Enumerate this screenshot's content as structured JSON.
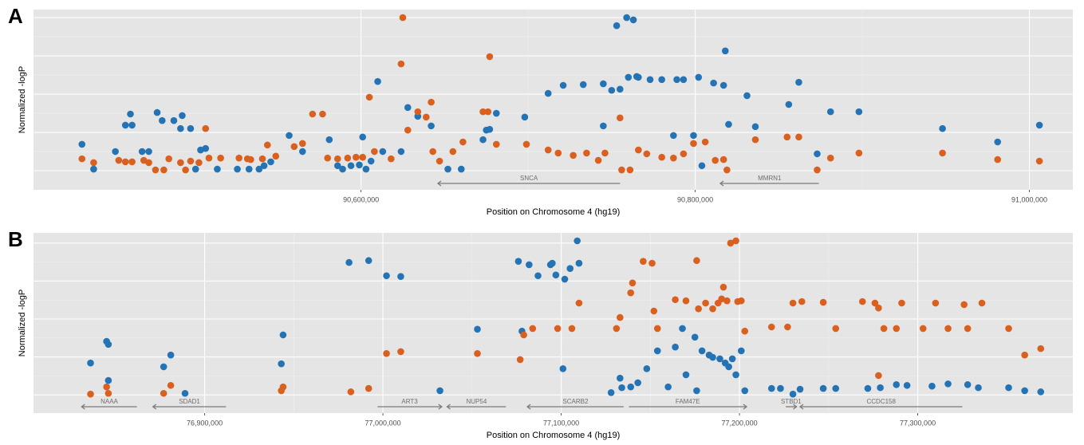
{
  "chart_data": [
    {
      "type": "scatter",
      "panel_label": "A",
      "xlabel": "Position on Chromosome 4 (hg19)",
      "ylabel": "Normalized -logP",
      "xlim": [
        90404000,
        91026000
      ],
      "ylim": [
        0.5,
        5.21
      ],
      "xticks": [
        {
          "value": 90600000,
          "label": "90,600,000"
        },
        {
          "value": 90800000,
          "label": "90,800,000"
        },
        {
          "value": 91000000,
          "label": "91,000,000"
        }
      ],
      "yticks": [
        1,
        2,
        3,
        4,
        5
      ],
      "grid": true,
      "genes": [
        {
          "name": "SNCA",
          "start": 90646000,
          "end": 90755000,
          "arrow": "left"
        },
        {
          "name": "MMRN1",
          "start": 90815000,
          "end": 90874000,
          "arrow": "left"
        }
      ],
      "series": [
        {
          "color": "#2474b5",
          "x": [
            90433000,
            90440000,
            90453000,
            90459000,
            90462000,
            90463000,
            90469000,
            90473000,
            90478000,
            90481000,
            90488000,
            90492000,
            90493000,
            90498000,
            90501000,
            90504000,
            90507000,
            90514000,
            90526000,
            90533000,
            90539000,
            90542000,
            90546000,
            90557000,
            90565000,
            90581000,
            90586000,
            90589000,
            90594000,
            90599000,
            90601000,
            90603000,
            90606000,
            90610000,
            90613000,
            90624000,
            90628000,
            90634000,
            90642000,
            90652000,
            90660000,
            90673000,
            90675000,
            90677000,
            90681000,
            90698000,
            90712000,
            90721000,
            90733000,
            90745000,
            90745000,
            90750000,
            90753000,
            90755000,
            90759000,
            90760000,
            90763000,
            90765000,
            90766000,
            90773000,
            90780000,
            90787000,
            90789000,
            90793000,
            90799000,
            90802000,
            90804000,
            90811000,
            90817000,
            90818000,
            90820000,
            90831000,
            90836000,
            90856000,
            90862000,
            90873000,
            90881000,
            90898000,
            90948000,
            90981000,
            91006000
          ],
          "values": [
            1.69,
            1.04,
            1.5,
            2.19,
            2.48,
            2.19,
            1.5,
            1.5,
            2.52,
            2.31,
            2.31,
            2.1,
            2.44,
            2.1,
            1.04,
            1.54,
            1.58,
            1.04,
            1.04,
            1.04,
            1.04,
            1.13,
            1.23,
            1.92,
            1.5,
            1.81,
            1.13,
            1.04,
            1.13,
            1.15,
            1.88,
            1.04,
            1.25,
            3.33,
            1.5,
            1.5,
            2.65,
            2.42,
            2.17,
            1.04,
            1.04,
            1.81,
            2.06,
            2.08,
            2.5,
            2.4,
            3.02,
            3.23,
            3.25,
            3.27,
            2.17,
            3.1,
            4.79,
            3.13,
            5,
            3.44,
            4.94,
            3.46,
            3.44,
            3.38,
            3.38,
            1.92,
            3.38,
            3.38,
            1.92,
            3.44,
            1.13,
            3.29,
            3.23,
            4.13,
            2.21,
            2.96,
            2.15,
            2.73,
            3.31,
            1.44,
            2.54,
            2.54,
            2.1,
            1.75,
            2.19
          ]
        },
        {
          "color": "#d9601f",
          "x": [
            90433000,
            90440000,
            90455000,
            90459000,
            90463000,
            90470000,
            90473000,
            90477000,
            90482000,
            90485000,
            90492000,
            90495000,
            90498000,
            90503000,
            90507000,
            90509000,
            90516000,
            90527000,
            90532000,
            90534000,
            90541000,
            90544000,
            90549000,
            90560000,
            90565000,
            90571000,
            90577000,
            90580000,
            90586000,
            90592000,
            90597000,
            90601000,
            90605000,
            90608000,
            90618000,
            90624000,
            90625000,
            90628000,
            90634000,
            90639000,
            90642000,
            90643000,
            90647000,
            90655000,
            90661000,
            90673000,
            90676000,
            90677000,
            90681000,
            90699000,
            90712000,
            90718000,
            90727000,
            90735000,
            90742000,
            90746000,
            90755000,
            90756000,
            90761000,
            90766000,
            90771000,
            90780000,
            90787000,
            90793000,
            90799000,
            90806000,
            90812000,
            90817000,
            90819000,
            90836000,
            90855000,
            90862000,
            90873000,
            90881000,
            90898000,
            90948000,
            90981000,
            91006000
          ],
          "values": [
            1.31,
            1.21,
            1.27,
            1.23,
            1.23,
            1.27,
            1.21,
            1.02,
            1.02,
            1.31,
            1.21,
            1.02,
            1.25,
            1.21,
            2.1,
            1.33,
            1.33,
            1.33,
            1.31,
            1.29,
            1.31,
            1.67,
            1.38,
            1.63,
            1.71,
            2.48,
            2.48,
            1.33,
            1.31,
            1.33,
            1.35,
            1.35,
            2.92,
            1.5,
            1.31,
            3.79,
            5,
            2.06,
            2.54,
            2.4,
            2.79,
            1.5,
            1.25,
            1.5,
            1.75,
            2.54,
            2.54,
            3.98,
            1.69,
            1.69,
            1.54,
            1.46,
            1.4,
            1.46,
            1.27,
            1.46,
            2.38,
            1.02,
            1.02,
            1.54,
            1.44,
            1.35,
            1.33,
            1.44,
            1.71,
            1.75,
            1.27,
            1.29,
            1.02,
            1.81,
            1.88,
            1.88,
            1.02,
            1.33,
            1.46,
            1.46,
            1.29,
            1.25
          ]
        }
      ]
    },
    {
      "type": "scatter",
      "panel_label": "B",
      "xlabel": "Position on Chromosome 4 (hg19)",
      "ylabel": "Normalized -logP",
      "xlim": [
        76804000,
        77387000
      ],
      "ylim": [
        0.52,
        5.27
      ],
      "xticks": [
        {
          "value": 76900000,
          "label": "76,900,000"
        },
        {
          "value": 77000000,
          "label": "77,000,000"
        },
        {
          "value": 77100000,
          "label": "77,100,000"
        },
        {
          "value": 77200000,
          "label": "77,200,000"
        },
        {
          "value": 77300000,
          "label": "77,300,000"
        }
      ],
      "yticks": [
        1,
        2,
        3,
        4,
        5
      ],
      "grid": true,
      "genes": [
        {
          "name": "NAAA",
          "start": 76831000,
          "end": 76862000,
          "arrow": "left"
        },
        {
          "name": "SDAD1",
          "start": 76871000,
          "end": 76912000,
          "arrow": "left"
        },
        {
          "name": "ART3",
          "start": 76997000,
          "end": 77033000,
          "arrow": "right"
        },
        {
          "name": "NUP54",
          "start": 77036000,
          "end": 77069000,
          "arrow": "left"
        },
        {
          "name": "SCARB2",
          "start": 77081000,
          "end": 77135000,
          "arrow": "left"
        },
        {
          "name": "FAM47E",
          "start": 77138000,
          "end": 77204000,
          "arrow": "right"
        },
        {
          "name": "STBD1",
          "start": 77226000,
          "end": 77232000,
          "arrow": "right"
        },
        {
          "name": "CCDC158",
          "start": 77234000,
          "end": 77325000,
          "arrow": "left"
        }
      ],
      "series": [
        {
          "color": "#2474b5",
          "x": [
            76836000,
            76846000,
            76845000,
            76846000,
            76877000,
            76881000,
            76889000,
            76944000,
            76943000,
            76981000,
            76992000,
            77002000,
            77010000,
            77032000,
            77053000,
            77076000,
            77078000,
            77082000,
            77087000,
            77094000,
            77095000,
            77097000,
            77101000,
            77102000,
            77105000,
            77109000,
            77110000,
            77128000,
            77133000,
            77134000,
            77139000,
            77143000,
            77148000,
            77154000,
            77160000,
            77164000,
            77168000,
            77170000,
            77175000,
            77176000,
            77179000,
            77183000,
            77185000,
            77189000,
            77192000,
            77194000,
            77196000,
            77198000,
            77201000,
            77203000,
            77218000,
            77223000,
            77230000,
            77234000,
            77247000,
            77254000,
            77272000,
            77279000,
            77288000,
            77294000,
            77308000,
            77317000,
            77328000,
            77334000,
            77351000,
            77360000,
            77369000
          ],
          "values": [
            1.84,
            1.38,
            2.41,
            2.33,
            1.74,
            2.05,
            1.04,
            2.58,
            1.82,
            4.49,
            4.54,
            4.14,
            4.12,
            1.11,
            2.73,
            4.52,
            2.68,
            4.43,
            4.14,
            4.43,
            4.47,
            4.16,
            1.69,
            4.05,
            4.33,
            5.06,
            4.47,
            1.06,
            1.44,
            1.19,
            1.21,
            1.32,
            1.69,
            2.16,
            1.21,
            2.26,
            2.75,
            1.53,
            2.52,
            1.11,
            2.16,
            2.05,
            1.99,
            1.95,
            1.84,
            1.74,
            1.95,
            1.53,
            2.16,
            1.11,
            1.17,
            1.17,
            1.02,
            1.15,
            1.17,
            1.17,
            1.17,
            1.19,
            1.27,
            1.25,
            1.23,
            1.29,
            1.27,
            1.19,
            1.19,
            1.11,
            1.08
          ]
        },
        {
          "color": "#d9601f",
          "x": [
            76836000,
            76845000,
            76846000,
            76881000,
            76877000,
            76944000,
            76943000,
            76982000,
            76992000,
            77002000,
            77010000,
            77053000,
            77077000,
            77079000,
            77084000,
            77098000,
            77106000,
            77110000,
            77131000,
            77133000,
            77139000,
            77140000,
            77146000,
            77151000,
            77152000,
            77154000,
            77164000,
            77170000,
            77176000,
            77177000,
            77181000,
            77185000,
            77188000,
            77190000,
            77191000,
            77193000,
            77195000,
            77198000,
            77199000,
            77201000,
            77203000,
            77218000,
            77227000,
            77230000,
            77235000,
            77247000,
            77254000,
            77269000,
            77276000,
            77278000,
            77281000,
            77288000,
            77291000,
            77303000,
            77310000,
            77317000,
            77326000,
            77328000,
            77336000,
            77351000,
            77360000,
            77369000,
            77278000
          ],
          "values": [
            1.02,
            1.21,
            1.04,
            1.25,
            1.04,
            1.21,
            1.11,
            1.08,
            1.17,
            2.09,
            2.14,
            2.09,
            1.93,
            2.58,
            2.75,
            2.75,
            2.75,
            3.42,
            2.75,
            3.04,
            3.69,
            3.95,
            4.52,
            4.47,
            3.21,
            2.75,
            3.51,
            3.48,
            4.54,
            3.27,
            3.42,
            3.27,
            3.42,
            3.53,
            3.84,
            3.48,
            5,
            5.06,
            3.46,
            3.48,
            2.68,
            2.79,
            2.79,
            3.42,
            3.46,
            3.44,
            2.75,
            3.46,
            3.42,
            3.29,
            2.75,
            2.75,
            3.42,
            2.75,
            3.42,
            2.75,
            3.38,
            2.75,
            3.42,
            2.75,
            2.05,
            2.22,
            1.51
          ]
        }
      ]
    }
  ]
}
